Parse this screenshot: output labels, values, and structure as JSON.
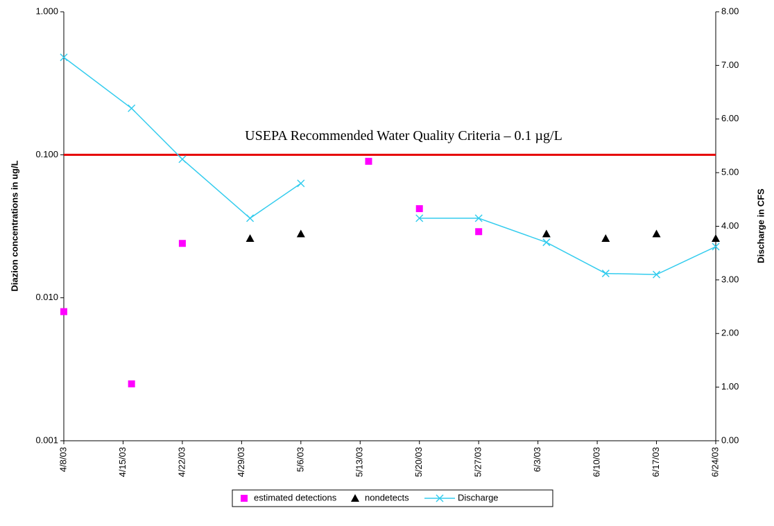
{
  "chart_data": {
    "type": "scatter",
    "ylabel": "Diazion concentrations in ug/L",
    "y2label": "Discharge in CFS",
    "log_y": true,
    "ylim": [
      0.001,
      1
    ],
    "yticks": [
      {
        "value": 1,
        "label": "1.000"
      },
      {
        "value": 0.1,
        "label": "0.100"
      },
      {
        "value": 0.01,
        "label": "0.010"
      },
      {
        "value": 0.001,
        "label": "0.001"
      }
    ],
    "y2lim": [
      0,
      8
    ],
    "y2ticks": [
      {
        "value": 0,
        "label": "0.00"
      },
      {
        "value": 1,
        "label": "1.00"
      },
      {
        "value": 2,
        "label": "2.00"
      },
      {
        "value": 3,
        "label": "3.00"
      },
      {
        "value": 4,
        "label": "4.00"
      },
      {
        "value": 5,
        "label": "5.00"
      },
      {
        "value": 6,
        "label": "6.00"
      },
      {
        "value": 7,
        "label": "7.00"
      },
      {
        "value": 8,
        "label": "8.00"
      }
    ],
    "xlim": [
      "2003-04-08",
      "2003-06-24"
    ],
    "xticks": [
      {
        "value": "2003-04-08",
        "label": "4/8/03"
      },
      {
        "value": "2003-04-15",
        "label": "4/15/03"
      },
      {
        "value": "2003-04-22",
        "label": "4/22/03"
      },
      {
        "value": "2003-04-29",
        "label": "4/29/03"
      },
      {
        "value": "2003-05-06",
        "label": "5/6/03"
      },
      {
        "value": "2003-05-13",
        "label": "5/13/03"
      },
      {
        "value": "2003-05-20",
        "label": "5/20/03"
      },
      {
        "value": "2003-05-27",
        "label": "5/27/03"
      },
      {
        "value": "2003-06-03",
        "label": "6/3/03"
      },
      {
        "value": "2003-06-10",
        "label": "6/10/03"
      },
      {
        "value": "2003-06-17",
        "label": "6/17/03"
      },
      {
        "value": "2003-06-24",
        "label": "6/24/03"
      }
    ],
    "reference_line": {
      "value": 0.1,
      "label": "USEPA Recommended Water Quality Criteria – 0.1 µg/L",
      "color": "#e60000"
    },
    "series": [
      {
        "name": "estimated detections",
        "color": "#ff00ff",
        "marker": "square",
        "x": [
          "2003-04-08",
          "2003-04-16",
          "2003-04-22",
          "2003-05-14",
          "2003-05-20",
          "2003-05-27"
        ],
        "values": [
          0.008,
          0.0025,
          0.024,
          0.09,
          0.042,
          0.029
        ]
      },
      {
        "name": "nondetects",
        "color": "#000000",
        "marker": "triangle",
        "x": [
          "2003-04-30",
          "2003-05-06",
          "2003-06-04",
          "2003-06-11",
          "2003-06-17",
          "2003-06-24"
        ],
        "values": [
          0.026,
          0.028,
          0.028,
          0.026,
          0.028,
          0.026
        ]
      },
      {
        "name": "Discharge",
        "color": "#33ccee",
        "marker": "x",
        "axis": "y2",
        "x": [
          "2003-04-08",
          "2003-04-16",
          "2003-04-22",
          "2003-04-30",
          "2003-05-06",
          "2003-05-14",
          "2003-05-20",
          "2003-05-27",
          "2003-06-04",
          "2003-06-11",
          "2003-06-17",
          "2003-06-24"
        ],
        "values": [
          7.15,
          6.2,
          5.25,
          4.15,
          4.8,
          null,
          4.15,
          4.15,
          3.7,
          3.12,
          3.1,
          3.62
        ]
      }
    ]
  }
}
